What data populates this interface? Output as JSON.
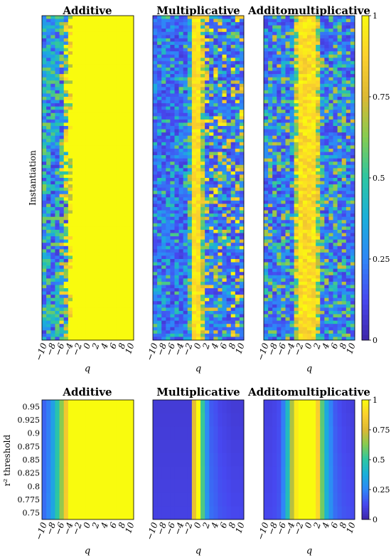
{
  "chart_data": [
    {
      "type": "heatmap",
      "title": "Additive",
      "xlabel": "q",
      "ylabel": "Instantiation",
      "x_ticks": [
        "−10",
        "−8",
        "−6",
        "−4",
        "−2",
        "0",
        "2",
        "4",
        "6",
        "8",
        "10"
      ],
      "xlim": [
        -10,
        10
      ],
      "n_instantiations": 100,
      "colormap": "parula",
      "value_range": [
        0,
        1
      ],
      "pattern": "values near 1 (yellow) for q ≥ −5; low and varying values (blue/cyan) at q ≤ −6"
    },
    {
      "type": "heatmap",
      "title": "Multiplicative",
      "xlabel": "q",
      "x_ticks": [
        "−10",
        "−8",
        "−6",
        "−4",
        "−2",
        "0",
        "2",
        "4",
        "6",
        "8",
        "10"
      ],
      "xlim": [
        -10,
        10
      ],
      "n_instantiations": 100,
      "colormap": "parula",
      "value_range": [
        0,
        1
      ],
      "pattern": "values near 1 in a narrow band around q = 0; mostly low (dark blue) elsewhere with scattered higher values for q > 0"
    },
    {
      "type": "heatmap",
      "title": "Additomultiplicative",
      "xlabel": "q",
      "x_ticks": [
        "−10",
        "−8",
        "−6",
        "−4",
        "−2",
        "0",
        "2",
        "4",
        "6",
        "8",
        "10"
      ],
      "xlim": [
        -10,
        10
      ],
      "n_instantiations": 100,
      "colormap": "parula",
      "value_range": [
        0,
        1
      ],
      "pattern": "values near 1 for roughly −3 ≤ q ≤ 2; mixed low/medium values elsewhere"
    },
    {
      "type": "heatmap",
      "title": "Additive",
      "xlabel": "q",
      "ylabel": "r² threshold",
      "x_ticks": [
        "−10",
        "−8",
        "−6",
        "−4",
        "−2",
        "0",
        "2",
        "4",
        "6",
        "8",
        "10"
      ],
      "y_ticks": [
        "0.95",
        "0.925",
        "0.9",
        "0.875",
        "0.85",
        "0.825",
        "0.8",
        "0.775",
        "0.75"
      ],
      "x": [
        -10,
        -9,
        -8,
        -7,
        -6,
        -5,
        -4,
        -3,
        -2,
        -1,
        0,
        1,
        2,
        3,
        4,
        5,
        6,
        7,
        8,
        9,
        10
      ],
      "y": [
        0.75,
        0.775,
        0.8,
        0.825,
        0.85,
        0.875,
        0.9,
        0.925,
        0.95
      ],
      "values_by_q": [
        0.2,
        0.25,
        0.35,
        0.5,
        0.65,
        0.85,
        1,
        1,
        1,
        1,
        1,
        1,
        1,
        1,
        1,
        1,
        1,
        1,
        1,
        1,
        1
      ],
      "colormap": "parula",
      "value_range": [
        0,
        1
      ]
    },
    {
      "type": "heatmap",
      "title": "Multiplicative",
      "xlabel": "q",
      "x_ticks": [
        "−10",
        "−8",
        "−6",
        "−4",
        "−2",
        "0",
        "2",
        "4",
        "6",
        "8",
        "10"
      ],
      "y_ticks": [
        "0.95",
        "0.925",
        "0.9",
        "0.875",
        "0.85",
        "0.825",
        "0.8",
        "0.775",
        "0.75"
      ],
      "x": [
        -10,
        -9,
        -8,
        -7,
        -6,
        -5,
        -4,
        -3,
        -2,
        -1,
        0,
        1,
        2,
        3,
        4,
        5,
        6,
        7,
        8,
        9,
        10
      ],
      "y": [
        0.75,
        0.775,
        0.8,
        0.825,
        0.85,
        0.875,
        0.9,
        0.925,
        0.95
      ],
      "values_by_q": [
        0.1,
        0.1,
        0.1,
        0.1,
        0.1,
        0.1,
        0.1,
        0.1,
        0.1,
        0.8,
        1,
        0.55,
        0.3,
        0.2,
        0.18,
        0.15,
        0.14,
        0.13,
        0.12,
        0.12,
        0.12
      ],
      "colormap": "parula",
      "value_range": [
        0,
        1
      ]
    },
    {
      "type": "heatmap",
      "title": "Additomultiplicative",
      "xlabel": "q",
      "x_ticks": [
        "−10",
        "−8",
        "−6",
        "−4",
        "−2",
        "0",
        "2",
        "4",
        "6",
        "8",
        "10"
      ],
      "y_ticks": [
        "0.95",
        "0.925",
        "0.9",
        "0.875",
        "0.85",
        "0.825",
        "0.8",
        "0.775",
        "0.75"
      ],
      "x": [
        -10,
        -9,
        -8,
        -7,
        -6,
        -5,
        -4,
        -3,
        -2,
        -1,
        0,
        1,
        2,
        3,
        4,
        5,
        6,
        7,
        8,
        9,
        10
      ],
      "y": [
        0.75,
        0.775,
        0.8,
        0.825,
        0.85,
        0.875,
        0.9,
        0.925,
        0.95
      ],
      "values_by_q": [
        0.12,
        0.12,
        0.13,
        0.15,
        0.25,
        0.45,
        0.7,
        0.95,
        1,
        1,
        1,
        1,
        0.9,
        0.6,
        0.4,
        0.28,
        0.2,
        0.17,
        0.15,
        0.14,
        0.13
      ],
      "colormap": "parula",
      "value_range": [
        0,
        1
      ]
    }
  ],
  "colorbar": {
    "ticks": [
      "1",
      "0.75",
      "0.5",
      "0.25",
      "0"
    ],
    "values": [
      1,
      0.75,
      0.5,
      0.25,
      0
    ]
  },
  "colors": {
    "parula_stops": [
      "#3e26a8",
      "#4748f0",
      "#2e87f7",
      "#1aaedb",
      "#2cc6a3",
      "#85cc51",
      "#ddb833",
      "#fcd02e",
      "#f9fb0e"
    ]
  }
}
